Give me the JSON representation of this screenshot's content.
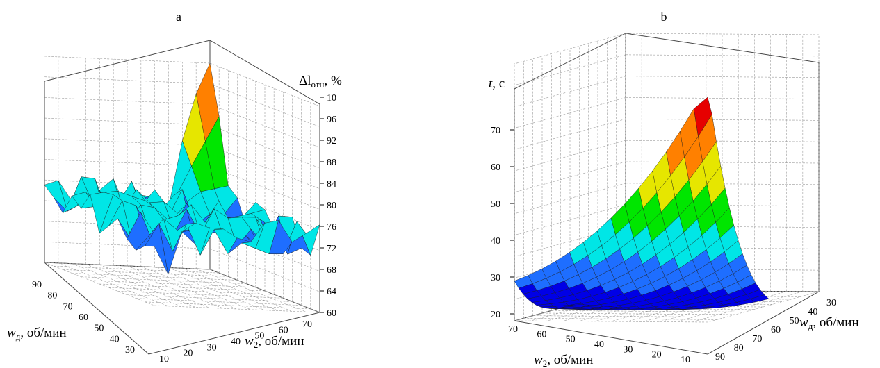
{
  "panels": [
    {
      "label": "a",
      "chart_data": {
        "type": "surface3d",
        "title": "",
        "zlabel_main": "Δl",
        "zlabel_sub": "отн",
        "zlabel_unit": ", %",
        "xlabel_main": "w",
        "xlabel_sub": "2",
        "xlabel_unit": ", об/мин",
        "ylabel_main": "w",
        "ylabel_sub": "д",
        "ylabel_unit": ", об/мин",
        "x_ticks": [
          "10",
          "20",
          "30",
          "40",
          "50",
          "60",
          "70"
        ],
        "y_ticks": [
          "90",
          "80",
          "70",
          "60",
          "50",
          "40",
          "30"
        ],
        "z_ticks": [
          "10",
          "96",
          "92",
          "88",
          "84",
          "80",
          "76",
          "72",
          "68",
          "64",
          "60"
        ],
        "x_range": [
          10,
          70
        ],
        "y_range": [
          30,
          90
        ],
        "z_range": [
          60,
          100
        ],
        "grid": true,
        "colormap": [
          "#0000e6",
          "#1e6eff",
          "#00e6e6",
          "#00e600",
          "#e6e600",
          "#ff8000",
          "#e60000"
        ],
        "surface_description_values": {
          "peak_region": "w2 ≈ 60–70, w_d ≈ 30–40, z up to 100",
          "base_level": "z ≈ 66–80, noisy"
        }
      }
    },
    {
      "label": "b",
      "chart_data": {
        "type": "surface3d",
        "title": "",
        "zlabel_main": "t",
        "zlabel_unit": ", c",
        "xlabel_main": "w",
        "xlabel_sub": "2",
        "xlabel_unit": ", об/мин",
        "ylabel_main": "w",
        "ylabel_sub": "д",
        "ylabel_unit": ", об/мин",
        "x_ticks": [
          "70",
          "60",
          "50",
          "40",
          "30",
          "20",
          "10"
        ],
        "y_ticks": [
          "30",
          "40",
          "50",
          "60",
          "70",
          "80",
          "90"
        ],
        "z_ticks": [
          "20",
          "30",
          "40",
          "50",
          "60",
          "70"
        ],
        "x_range": [
          10,
          70
        ],
        "y_range": [
          30,
          90
        ],
        "z_range": [
          18,
          75
        ],
        "grid": true,
        "colormap": [
          "#0000e6",
          "#1e6eff",
          "#00e6e6",
          "#00e600",
          "#e6e600",
          "#ff8000",
          "#e60000"
        ]
      }
    }
  ]
}
